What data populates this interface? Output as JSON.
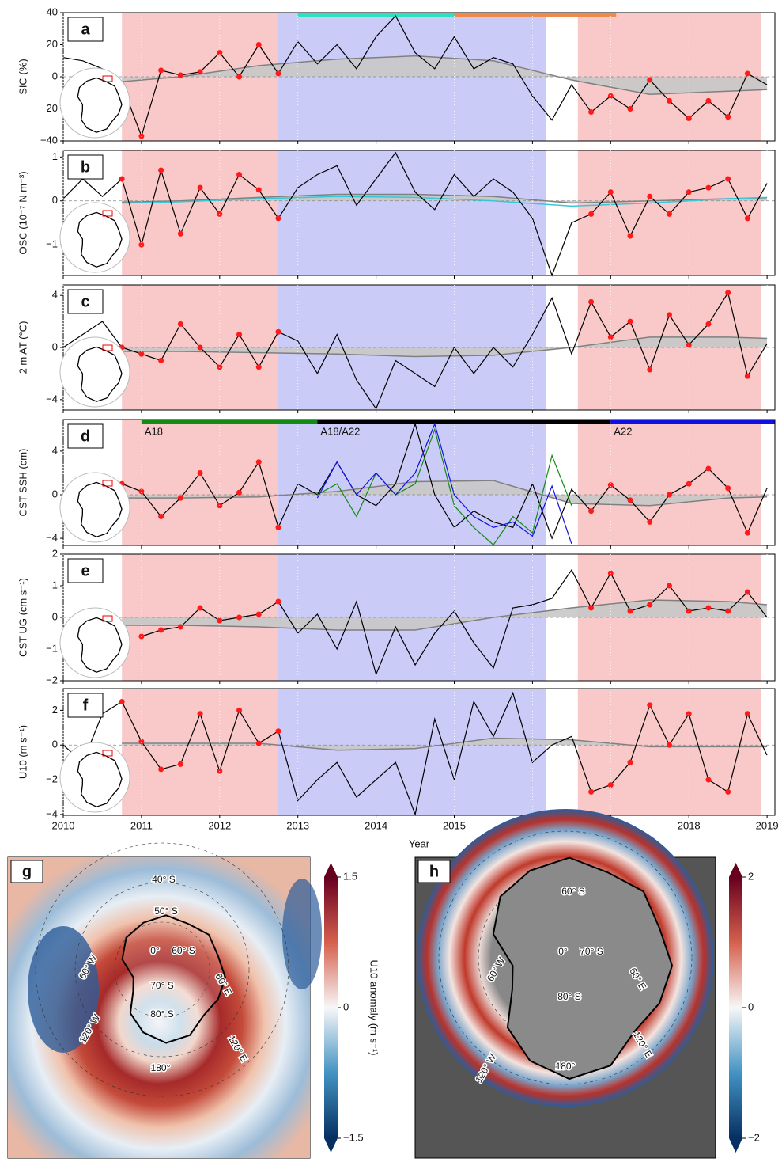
{
  "periods": [
    {
      "start": 2010.75,
      "end": 2012.75,
      "color": "#f9c8c8",
      "markers": true
    },
    {
      "start": 2012.75,
      "end": 2016.17,
      "color": "#cbcbf8",
      "markers": false
    },
    {
      "start": 2016.58,
      "end": 2018.92,
      "color": "#f9c8c8",
      "markers": true
    }
  ],
  "chart_data": [
    {
      "type": "line",
      "label": "a",
      "ylabel": "SIC (%)",
      "xlim": [
        2010,
        2019.1
      ],
      "ylim": [
        -40,
        40
      ],
      "yticks": [
        40,
        20,
        0,
        {
          "value": -20,
          "label": "−20"
        },
        {
          "value": -40,
          "label": "−40"
        }
      ],
      "xticks": [
        2010,
        2011,
        2012,
        2013,
        2014,
        2015,
        2016,
        2017,
        2018,
        2019
      ],
      "bars": [
        {
          "start": 2013,
          "end": 2015,
          "color": "#2de0c0"
        },
        {
          "start": 2015,
          "end": 2017.07,
          "color": "#f08a4b"
        }
      ],
      "x": [
        2010,
        2010.25,
        2010.5,
        2010.75,
        2011,
        2011.25,
        2011.5,
        2011.75,
        2012,
        2012.25,
        2012.5,
        2012.75,
        2013,
        2013.25,
        2013.5,
        2013.75,
        2014,
        2014.25,
        2014.5,
        2014.75,
        2015,
        2015.25,
        2015.5,
        2015.75,
        2016,
        2016.25,
        2016.5,
        2016.75,
        2017,
        2017.25,
        2017.5,
        2017.75,
        2018,
        2018.25,
        2018.5,
        2018.75,
        2019
      ],
      "series": [
        {
          "color": "#000000",
          "values": [
            12,
            10,
            5,
            -5,
            -37,
            4,
            1,
            3,
            15,
            0,
            20,
            2,
            22,
            8,
            20,
            5,
            25,
            38,
            15,
            5,
            25,
            5,
            12,
            8,
            -12,
            -27,
            -5,
            -22,
            -12,
            -20,
            -2,
            -15,
            -26,
            -15,
            -25,
            2,
            -5
          ]
        }
      ],
      "trends": [
        {
          "color": "#808080",
          "x": [
            2010.75,
            2011.5,
            2012.5,
            2013.5,
            2014.5,
            2015.5,
            2016.5,
            2017.5,
            2018.5,
            2019
          ],
          "values": [
            -3,
            0,
            7,
            11,
            13,
            10,
            -2,
            -11,
            -9,
            -8
          ]
        }
      ]
    },
    {
      "type": "line",
      "label": "b",
      "ylabel": "OSC (10⁻⁷ N m⁻³)",
      "xlim": [
        2010,
        2019.1
      ],
      "ylim": [
        -1.7,
        1.15
      ],
      "yticks": [
        1,
        0,
        {
          "value": -1,
          "label": "−1"
        }
      ],
      "xticks": [
        2010,
        2011,
        2012,
        2013,
        2014,
        2015,
        2016,
        2017,
        2018,
        2019
      ],
      "x": [
        2010,
        2010.25,
        2010.5,
        2010.75,
        2011,
        2011.25,
        2011.5,
        2011.75,
        2012,
        2012.25,
        2012.5,
        2012.75,
        2013,
        2013.25,
        2013.5,
        2013.75,
        2014,
        2014.25,
        2014.5,
        2014.75,
        2015,
        2015.25,
        2015.5,
        2015.75,
        2016,
        2016.25,
        2016.5,
        2016.75,
        2017,
        2017.25,
        2017.5,
        2017.75,
        2018,
        2018.25,
        2018.5,
        2018.75,
        2019
      ],
      "series": [
        {
          "color": "#000000",
          "values": [
            0.05,
            0.5,
            0.1,
            0.5,
            -1.0,
            0.7,
            -0.75,
            0.3,
            -0.3,
            0.6,
            0.25,
            -0.4,
            0.3,
            0.6,
            0.8,
            -0.1,
            0.5,
            1.1,
            0.2,
            -0.2,
            0.6,
            0.1,
            0.5,
            0.2,
            -0.4,
            -1.7,
            -0.5,
            -0.3,
            0.2,
            -0.8,
            0.1,
            -0.3,
            0.2,
            0.3,
            0.5,
            -0.4,
            0.4
          ]
        }
      ],
      "trends": [
        {
          "color": "#808080",
          "x": [
            2010.75,
            2011.5,
            2012.5,
            2013.5,
            2014.5,
            2015.5,
            2016.5,
            2017.5,
            2018.5,
            2019
          ],
          "values": [
            -0.03,
            0,
            0.08,
            0.15,
            0.15,
            0.1,
            -0.05,
            0,
            0.05,
            0.07
          ]
        },
        {
          "color": "#36c8d8",
          "x": [
            2010.75,
            2011.5,
            2012.5,
            2013.5,
            2014.5,
            2015.5,
            2016.5,
            2017.5,
            2018.5,
            2019
          ],
          "values": [
            -0.05,
            -0.02,
            0.05,
            0.1,
            0.08,
            0,
            -0.12,
            -0.05,
            0.05,
            0.08
          ]
        }
      ]
    },
    {
      "type": "line",
      "label": "c",
      "ylabel": "2 m AT (°C)",
      "xlim": [
        2010,
        2019.1
      ],
      "ylim": [
        -4.8,
        4.8
      ],
      "yticks": [
        4,
        0,
        {
          "value": -4,
          "label": "−4"
        }
      ],
      "xticks": [
        2010,
        2011,
        2012,
        2013,
        2014,
        2015,
        2016,
        2017,
        2018,
        2019
      ],
      "x": [
        2010,
        2010.25,
        2010.5,
        2010.75,
        2011,
        2011.25,
        2011.5,
        2011.75,
        2012,
        2012.25,
        2012.5,
        2012.75,
        2013,
        2013.25,
        2013.5,
        2013.75,
        2014,
        2014.25,
        2014.5,
        2014.75,
        2015,
        2015.25,
        2015.5,
        2015.75,
        2016,
        2016.25,
        2016.5,
        2016.75,
        2017,
        2017.25,
        2017.5,
        2017.75,
        2018,
        2018.25,
        2018.5,
        2018.75,
        2019
      ],
      "series": [
        {
          "color": "#000000",
          "values": [
            0,
            1,
            2,
            0,
            -0.5,
            -1,
            1.8,
            0,
            -1.5,
            1,
            -1.5,
            1.2,
            0.5,
            -2,
            1,
            -2.5,
            -4.7,
            -1,
            -2,
            -3,
            0,
            -2,
            0,
            -1.5,
            1,
            3.8,
            -0.5,
            3.5,
            0.8,
            2,
            -1.7,
            2.5,
            0.2,
            1.8,
            4.2,
            -2.2,
            0.3
          ]
        }
      ],
      "trends": [
        {
          "color": "#808080",
          "x": [
            2010.75,
            2011.5,
            2012.5,
            2013.5,
            2014.5,
            2015.5,
            2016.5,
            2017.5,
            2018.5,
            2019
          ],
          "values": [
            -0.3,
            -0.3,
            -0.4,
            -0.5,
            -0.7,
            -0.6,
            0,
            0.8,
            0.8,
            0.7
          ]
        }
      ]
    },
    {
      "type": "line",
      "label": "d",
      "ylabel": "CST SSH (cm)",
      "xlim": [
        2010,
        2019.1
      ],
      "ylim": [
        -4.65,
        6.9
      ],
      "yticks": [
        4,
        0,
        {
          "value": -4,
          "label": "−4"
        }
      ],
      "xticks": [
        2010,
        2011,
        2012,
        2013,
        2014,
        2015,
        2016,
        2017,
        2018,
        2019
      ],
      "bars": [
        {
          "start": 2011,
          "end": 2013.25,
          "color": "#138a13",
          "label": "A18"
        },
        {
          "start": 2013.25,
          "end": 2017,
          "color": "#000000",
          "label": "A18/A22"
        },
        {
          "start": 2017,
          "end": 2019.1,
          "color": "#1010e0",
          "label": "A22"
        }
      ],
      "x": [
        2010,
        2010.25,
        2010.5,
        2010.75,
        2011,
        2011.25,
        2011.5,
        2011.75,
        2012,
        2012.25,
        2012.5,
        2012.75,
        2013,
        2013.25,
        2013.5,
        2013.75,
        2014,
        2014.25,
        2014.5,
        2014.75,
        2015,
        2015.25,
        2015.5,
        2015.75,
        2016,
        2016.25,
        2016.5,
        2016.75,
        2017,
        2017.25,
        2017.5,
        2017.75,
        2018,
        2018.25,
        2018.5,
        2018.75,
        2019
      ],
      "series": [
        {
          "color": "#000000",
          "values": [
            0,
            1,
            -3,
            1,
            0.3,
            -2,
            -0.3,
            2,
            -1,
            0.2,
            3,
            -3,
            1,
            0,
            3,
            0,
            -1,
            1,
            6.5,
            0,
            -3,
            -1.5,
            -2.5,
            -3,
            1,
            -4,
            0.5,
            -1.5,
            0.9,
            -0.5,
            -2.5,
            0,
            1,
            2.4,
            0.6,
            -3.5,
            0.6
          ]
        },
        {
          "color": "#138a13",
          "values": [
            null,
            null,
            null,
            null,
            null,
            null,
            null,
            null,
            null,
            null,
            null,
            null,
            null,
            0,
            1,
            -2,
            2,
            0,
            1,
            6,
            -1,
            -3,
            -4.6,
            -2,
            -3.5,
            3.6,
            -1,
            null,
            null,
            null,
            null,
            null,
            null,
            null,
            null,
            null,
            null
          ]
        },
        {
          "color": "#1010e0",
          "values": [
            null,
            null,
            null,
            null,
            null,
            null,
            null,
            null,
            null,
            null,
            null,
            null,
            null,
            -0.3,
            3,
            0,
            2,
            0,
            2,
            6.5,
            0,
            -2,
            -3,
            -2.5,
            -3.8,
            0.8,
            -4.5,
            null,
            null,
            null,
            null,
            null,
            null,
            null,
            null,
            null,
            null
          ]
        }
      ],
      "trends": [
        {
          "color": "#808080",
          "x": [
            2010.75,
            2011.5,
            2012.5,
            2013.5,
            2014.5,
            2015.5,
            2016.5,
            2017.5,
            2018.5,
            2019
          ],
          "values": [
            -0.3,
            -0.3,
            -0.2,
            0.3,
            1.2,
            1.3,
            -0.8,
            -1,
            -0.3,
            -0.2
          ]
        }
      ]
    },
    {
      "type": "line",
      "label": "e",
      "ylabel": "CST UG (cm s⁻¹)",
      "xlim": [
        2010,
        2019.1
      ],
      "ylim": [
        -2,
        2
      ],
      "yticks": [
        2,
        1,
        0,
        {
          "value": -1,
          "label": "−1"
        },
        {
          "value": -2,
          "label": "−2"
        }
      ],
      "xticks": [
        2010,
        2011,
        2012,
        2013,
        2014,
        2015,
        2016,
        2017,
        2018,
        2019
      ],
      "x": [
        2010,
        2010.25,
        2010.5,
        2010.75,
        2011,
        2011.25,
        2011.5,
        2011.75,
        2012,
        2012.25,
        2012.5,
        2012.75,
        2013,
        2013.25,
        2013.5,
        2013.75,
        2014,
        2014.25,
        2014.5,
        2014.75,
        2015,
        2015.25,
        2015.5,
        2015.75,
        2016,
        2016.25,
        2016.5,
        2016.75,
        2017,
        2017.25,
        2017.5,
        2017.75,
        2018,
        2018.25,
        2018.5,
        2018.75,
        2019
      ],
      "series": [
        {
          "color": "#000000",
          "values": [
            null,
            null,
            null,
            null,
            -0.6,
            -0.4,
            -0.3,
            0.3,
            -0.1,
            0,
            0.1,
            0.5,
            -0.5,
            0.1,
            -1,
            0.5,
            -1.8,
            -0.3,
            -1.5,
            -0.5,
            0.2,
            -0.8,
            -1.6,
            0.3,
            0.4,
            0.6,
            1.5,
            0.3,
            1.4,
            0.2,
            0.4,
            1,
            0.2,
            0.3,
            0.2,
            0.8,
            0
          ]
        }
      ],
      "trends": [
        {
          "color": "#808080",
          "x": [
            2010.75,
            2011.5,
            2012.5,
            2013.5,
            2014.5,
            2015.5,
            2016.5,
            2017.5,
            2018.5,
            2019
          ],
          "values": [
            -0.25,
            -0.25,
            -0.3,
            -0.4,
            -0.4,
            0,
            0.3,
            0.55,
            0.5,
            0.4
          ]
        }
      ]
    },
    {
      "type": "line",
      "label": "f",
      "ylabel": "U10 (m s⁻¹)",
      "xlabel": "Year",
      "xlim": [
        2010,
        2019.1
      ],
      "ylim": [
        -4.05,
        3.25
      ],
      "yticks": [
        2,
        0,
        {
          "value": -2,
          "label": "−2"
        },
        {
          "value": -4,
          "label": "−4"
        }
      ],
      "xticks": [
        2010,
        2011,
        2012,
        2013,
        2014,
        2015,
        2016,
        2017,
        2018,
        2019
      ],
      "x": [
        2010,
        2010.25,
        2010.5,
        2010.75,
        2011,
        2011.25,
        2011.5,
        2011.75,
        2012,
        2012.25,
        2012.5,
        2012.75,
        2013,
        2013.25,
        2013.5,
        2013.75,
        2014,
        2014.25,
        2014.5,
        2014.75,
        2015,
        2015.25,
        2015.5,
        2015.75,
        2016,
        2016.25,
        2016.5,
        2016.75,
        2017,
        2017.25,
        2017.5,
        2017.75,
        2018,
        2018.25,
        2018.5,
        2018.75,
        2019
      ],
      "series": [
        {
          "color": "#000000",
          "values": [
            0,
            -1,
            1.8,
            2.5,
            0.2,
            -1.4,
            -1.1,
            1.8,
            -1.5,
            2,
            0.1,
            0.8,
            -3.2,
            -2,
            -1,
            -3,
            -2,
            -1,
            -4,
            1.5,
            -2,
            2.5,
            0.5,
            3,
            -1,
            0,
            0.5,
            -2.7,
            -2.3,
            -1,
            2.3,
            0,
            1.8,
            -2,
            -2.7,
            1.8,
            -0.6
          ]
        }
      ],
      "trends": [
        {
          "color": "#808080",
          "x": [
            2010.75,
            2011.5,
            2012.5,
            2013.5,
            2014.5,
            2015.5,
            2016.5,
            2017.5,
            2018.5,
            2019
          ],
          "values": [
            0.1,
            0.1,
            0.1,
            -0.3,
            -0.2,
            0.4,
            0.3,
            -0.1,
            -0.1,
            -0.1
          ]
        }
      ]
    },
    {
      "type": "map",
      "label": "g",
      "clim": [
        -1.5,
        1.5
      ],
      "cticks": [
        1.5,
        0,
        {
          "value": -1.5,
          "label": "−1.5"
        }
      ],
      "clabel": "U10 anomaly (m s⁻¹)",
      "places": [
        "40° S",
        "50° S",
        "0°",
        "60° S",
        "70° S",
        "80° S",
        "60° W",
        "120° W",
        "180°",
        "60° E",
        "120° E"
      ]
    },
    {
      "type": "map",
      "label": "h",
      "clim": [
        -2,
        2
      ],
      "cticks": [
        2,
        0,
        {
          "value": -2,
          "label": "−2"
        }
      ],
      "places": [
        "60° S",
        "0°",
        "70° S",
        "80° S",
        "60° W",
        "120° W",
        "180°",
        "60° E",
        "120° E"
      ]
    }
  ]
}
